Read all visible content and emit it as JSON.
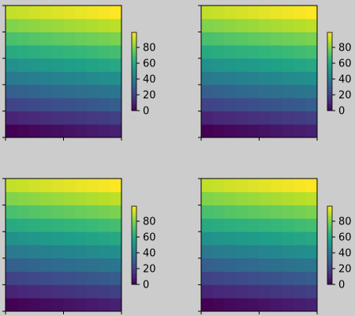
{
  "chart_data": [
    {
      "type": "heatmap",
      "title": "",
      "xlabel": "",
      "ylabel": "",
      "rows": 10,
      "cols": 10,
      "values": [
        [
          0,
          1,
          2,
          3,
          4,
          5,
          6,
          7,
          8,
          9
        ],
        [
          10,
          11,
          12,
          13,
          14,
          15,
          16,
          17,
          18,
          19
        ],
        [
          20,
          21,
          22,
          23,
          24,
          25,
          26,
          27,
          28,
          29
        ],
        [
          30,
          31,
          32,
          33,
          34,
          35,
          36,
          37,
          38,
          39
        ],
        [
          40,
          41,
          42,
          43,
          44,
          45,
          46,
          47,
          48,
          49
        ],
        [
          50,
          51,
          52,
          53,
          54,
          55,
          56,
          57,
          58,
          59
        ],
        [
          60,
          61,
          62,
          63,
          64,
          65,
          66,
          67,
          68,
          69
        ],
        [
          70,
          71,
          72,
          73,
          74,
          75,
          76,
          77,
          78,
          79
        ],
        [
          80,
          81,
          82,
          83,
          84,
          85,
          86,
          87,
          88,
          89
        ],
        [
          90,
          91,
          92,
          93,
          94,
          95,
          96,
          97,
          98,
          99
        ]
      ],
      "colormap": "viridis",
      "clim": [
        0,
        99
      ],
      "colorbar_ticks": [
        0,
        20,
        40,
        60,
        80
      ]
    },
    {
      "type": "heatmap",
      "title": "",
      "xlabel": "",
      "ylabel": "",
      "rows": 10,
      "cols": 10,
      "values": [
        [
          0,
          1,
          2,
          3,
          4,
          5,
          6,
          7,
          8,
          9
        ],
        [
          10,
          11,
          12,
          13,
          14,
          15,
          16,
          17,
          18,
          19
        ],
        [
          20,
          21,
          22,
          23,
          24,
          25,
          26,
          27,
          28,
          29
        ],
        [
          30,
          31,
          32,
          33,
          34,
          35,
          36,
          37,
          38,
          39
        ],
        [
          40,
          41,
          42,
          43,
          44,
          45,
          46,
          47,
          48,
          49
        ],
        [
          50,
          51,
          52,
          53,
          54,
          55,
          56,
          57,
          58,
          59
        ],
        [
          60,
          61,
          62,
          63,
          64,
          65,
          66,
          67,
          68,
          69
        ],
        [
          70,
          71,
          72,
          73,
          74,
          75,
          76,
          77,
          78,
          79
        ],
        [
          80,
          81,
          82,
          83,
          84,
          85,
          86,
          87,
          88,
          89
        ],
        [
          90,
          91,
          92,
          93,
          94,
          95,
          96,
          97,
          98,
          99
        ]
      ],
      "colormap": "viridis",
      "clim": [
        0,
        99
      ],
      "colorbar_ticks": [
        0,
        20,
        40,
        60,
        80
      ]
    },
    {
      "type": "heatmap",
      "title": "",
      "xlabel": "",
      "ylabel": "",
      "rows": 10,
      "cols": 10,
      "values": [
        [
          0,
          1,
          2,
          3,
          4,
          5,
          6,
          7,
          8,
          9
        ],
        [
          10,
          11,
          12,
          13,
          14,
          15,
          16,
          17,
          18,
          19
        ],
        [
          20,
          21,
          22,
          23,
          24,
          25,
          26,
          27,
          28,
          29
        ],
        [
          30,
          31,
          32,
          33,
          34,
          35,
          36,
          37,
          38,
          39
        ],
        [
          40,
          41,
          42,
          43,
          44,
          45,
          46,
          47,
          48,
          49
        ],
        [
          50,
          51,
          52,
          53,
          54,
          55,
          56,
          57,
          58,
          59
        ],
        [
          60,
          61,
          62,
          63,
          64,
          65,
          66,
          67,
          68,
          69
        ],
        [
          70,
          71,
          72,
          73,
          74,
          75,
          76,
          77,
          78,
          79
        ],
        [
          80,
          81,
          82,
          83,
          84,
          85,
          86,
          87,
          88,
          89
        ],
        [
          90,
          91,
          92,
          93,
          94,
          95,
          96,
          97,
          98,
          99
        ]
      ],
      "colormap": "viridis",
      "clim": [
        0,
        99
      ],
      "colorbar_ticks": [
        0,
        20,
        40,
        60,
        80
      ]
    },
    {
      "type": "heatmap",
      "title": "",
      "xlabel": "",
      "ylabel": "",
      "rows": 10,
      "cols": 10,
      "values": [
        [
          0,
          1,
          2,
          3,
          4,
          5,
          6,
          7,
          8,
          9
        ],
        [
          10,
          11,
          12,
          13,
          14,
          15,
          16,
          17,
          18,
          19
        ],
        [
          20,
          21,
          22,
          23,
          24,
          25,
          26,
          27,
          28,
          29
        ],
        [
          30,
          31,
          32,
          33,
          34,
          35,
          36,
          37,
          38,
          39
        ],
        [
          40,
          41,
          42,
          43,
          44,
          45,
          46,
          47,
          48,
          49
        ],
        [
          50,
          51,
          52,
          53,
          54,
          55,
          56,
          57,
          58,
          59
        ],
        [
          60,
          61,
          62,
          63,
          64,
          65,
          66,
          67,
          68,
          69
        ],
        [
          70,
          71,
          72,
          73,
          74,
          75,
          76,
          77,
          78,
          79
        ],
        [
          80,
          81,
          82,
          83,
          84,
          85,
          86,
          87,
          88,
          89
        ],
        [
          90,
          91,
          92,
          93,
          94,
          95,
          96,
          97,
          98,
          99
        ]
      ],
      "colormap": "viridis",
      "clim": [
        0,
        99
      ],
      "colorbar_ticks": [
        0,
        20,
        40,
        60,
        80
      ]
    }
  ]
}
